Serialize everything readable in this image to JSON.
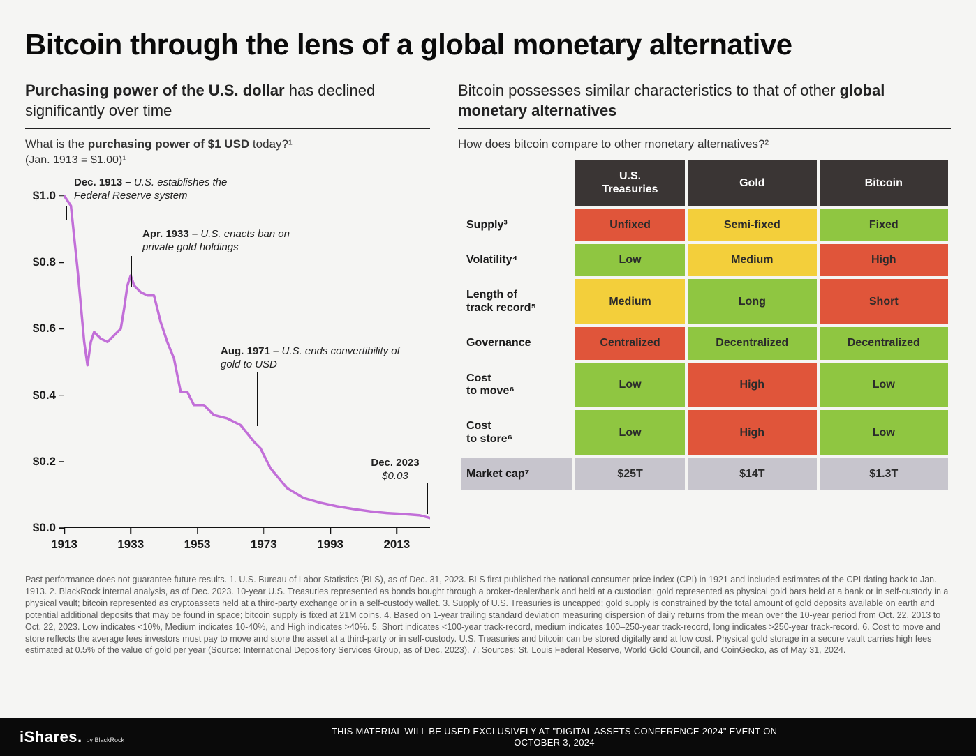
{
  "page": {
    "title": "Bitcoin through the lens of a global monetary alternative",
    "background_color": "#f5f5f3",
    "text_color": "#1a1a1a"
  },
  "left": {
    "heading_prefix_bold": "Purchasing power of the U.S. dollar",
    "heading_rest": " has declined significantly over time",
    "question_prefix": "What is the ",
    "question_bold": "purchasing power of $1 USD",
    "question_suffix": " today?¹",
    "baseline_note": "(Jan. 1913 = $1.00)¹"
  },
  "chart": {
    "type": "line",
    "line_color": "#c26fd8",
    "line_width": 3.5,
    "axis_color": "#111111",
    "label_fontsize": 17,
    "xlim": [
      1913,
      2023
    ],
    "ylim": [
      0.0,
      1.05
    ],
    "y_ticks": [
      {
        "v": 0.0,
        "label": "$0.0"
      },
      {
        "v": 0.2,
        "label": "$0.2"
      },
      {
        "v": 0.4,
        "label": "$0.4"
      },
      {
        "v": 0.6,
        "label": "$0.6"
      },
      {
        "v": 0.8,
        "label": "$0.8"
      },
      {
        "v": 1.0,
        "label": "$1.0"
      }
    ],
    "x_ticks": [
      {
        "v": 1913,
        "label": "1913"
      },
      {
        "v": 1933,
        "label": "1933"
      },
      {
        "v": 1953,
        "label": "1953"
      },
      {
        "v": 1973,
        "label": "1973"
      },
      {
        "v": 1993,
        "label": "1993"
      },
      {
        "v": 2013,
        "label": "2013"
      }
    ],
    "series": [
      {
        "x": 1913,
        "y": 1.0
      },
      {
        "x": 1915,
        "y": 0.97
      },
      {
        "x": 1917,
        "y": 0.78
      },
      {
        "x": 1919,
        "y": 0.56
      },
      {
        "x": 1920,
        "y": 0.49
      },
      {
        "x": 1921,
        "y": 0.56
      },
      {
        "x": 1922,
        "y": 0.59
      },
      {
        "x": 1924,
        "y": 0.57
      },
      {
        "x": 1926,
        "y": 0.56
      },
      {
        "x": 1928,
        "y": 0.58
      },
      {
        "x": 1930,
        "y": 0.6
      },
      {
        "x": 1931,
        "y": 0.66
      },
      {
        "x": 1932,
        "y": 0.73
      },
      {
        "x": 1933,
        "y": 0.76
      },
      {
        "x": 1934,
        "y": 0.73
      },
      {
        "x": 1936,
        "y": 0.71
      },
      {
        "x": 1938,
        "y": 0.7
      },
      {
        "x": 1940,
        "y": 0.7
      },
      {
        "x": 1942,
        "y": 0.62
      },
      {
        "x": 1944,
        "y": 0.56
      },
      {
        "x": 1946,
        "y": 0.51
      },
      {
        "x": 1948,
        "y": 0.41
      },
      {
        "x": 1950,
        "y": 0.41
      },
      {
        "x": 1952,
        "y": 0.37
      },
      {
        "x": 1955,
        "y": 0.37
      },
      {
        "x": 1958,
        "y": 0.34
      },
      {
        "x": 1962,
        "y": 0.33
      },
      {
        "x": 1966,
        "y": 0.31
      },
      {
        "x": 1970,
        "y": 0.26
      },
      {
        "x": 1972,
        "y": 0.24
      },
      {
        "x": 1975,
        "y": 0.18
      },
      {
        "x": 1980,
        "y": 0.12
      },
      {
        "x": 1985,
        "y": 0.09
      },
      {
        "x": 1990,
        "y": 0.076
      },
      {
        "x": 1995,
        "y": 0.065
      },
      {
        "x": 2000,
        "y": 0.057
      },
      {
        "x": 2005,
        "y": 0.05
      },
      {
        "x": 2010,
        "y": 0.045
      },
      {
        "x": 2015,
        "y": 0.042
      },
      {
        "x": 2020,
        "y": 0.038
      },
      {
        "x": 2023,
        "y": 0.03
      }
    ],
    "annotations": [
      {
        "id": "fed",
        "title": "Dec. 1913 – ",
        "text": "U.S. establishes the Federal Reserve system",
        "x": 1913,
        "line_y0": 1.0
      },
      {
        "id": "gold_ban",
        "title": "Apr. 1933 – ",
        "text": "U.S. enacts ban on private gold holdings",
        "x": 1933,
        "line_y0": 0.76
      },
      {
        "id": "end_conv",
        "title": "Aug. 1971 – ",
        "text": "U.S. ends convertibility of gold to USD",
        "x": 1971,
        "line_y0": 0.25
      },
      {
        "id": "now",
        "title": "Dec. 2023",
        "text": "$0.03",
        "x": 2023,
        "line_y0": 0.03
      }
    ]
  },
  "right": {
    "heading_prefix": "Bitcoin possesses similar characteristics to that of other ",
    "heading_bold": "global monetary alternatives",
    "question": "How does bitcoin compare to other monetary alternatives?²"
  },
  "table": {
    "header_bg": "#3a3534",
    "header_fg": "#ffffff",
    "marketcap_bg": "#c7c5cd",
    "colors": {
      "green": "#8fc641",
      "yellow": "#f3cf3b",
      "red": "#e0553a"
    },
    "columns": [
      "U.S. Treasuries",
      "Gold",
      "Bitcoin"
    ],
    "rows": [
      {
        "label": "Supply³",
        "cells": [
          {
            "text": "Unfixed",
            "color": "red"
          },
          {
            "text": "Semi-fixed",
            "color": "yellow"
          },
          {
            "text": "Fixed",
            "color": "green"
          }
        ]
      },
      {
        "label": "Volatility⁴",
        "cells": [
          {
            "text": "Low",
            "color": "green"
          },
          {
            "text": "Medium",
            "color": "yellow"
          },
          {
            "text": "High",
            "color": "red"
          }
        ]
      },
      {
        "label": "Length of track record⁵",
        "cells": [
          {
            "text": "Medium",
            "color": "yellow"
          },
          {
            "text": "Long",
            "color": "green"
          },
          {
            "text": "Short",
            "color": "red"
          }
        ]
      },
      {
        "label": "Governance",
        "cells": [
          {
            "text": "Centralized",
            "color": "red"
          },
          {
            "text": "Decentralized",
            "color": "green"
          },
          {
            "text": "Decentralized",
            "color": "green"
          }
        ]
      },
      {
        "label": "Cost to move⁶",
        "cells": [
          {
            "text": "Low",
            "color": "green"
          },
          {
            "text": "High",
            "color": "red"
          },
          {
            "text": "Low",
            "color": "green"
          }
        ]
      },
      {
        "label": "Cost to store⁶",
        "cells": [
          {
            "text": "Low",
            "color": "green"
          },
          {
            "text": "High",
            "color": "red"
          },
          {
            "text": "Low",
            "color": "green"
          }
        ]
      }
    ],
    "marketcap": {
      "label": "Market cap⁷",
      "cells": [
        "$25T",
        "$14T",
        "$1.3T"
      ]
    }
  },
  "footnotes": "Past performance does not guarantee future results. 1. U.S. Bureau of Labor Statistics (BLS), as of Dec. 31, 2023. BLS first published the national consumer price index (CPI) in 1921 and included estimates of the CPI dating back to Jan. 1913. 2. BlackRock internal analysis, as of Dec. 2023. 10-year U.S. Treasuries represented as bonds bought through a broker-dealer/bank and held at a custodian; gold represented as physical gold bars held at a bank or in self-custody in a physical vault; bitcoin represented as cryptoassets held at a third-party exchange or in a self-custody wallet. 3. Supply of U.S. Treasuries is uncapped; gold supply is constrained by the total amount of gold deposits available on earth and potential additional deposits that may be found in space; bitcoin supply is fixed at 21M coins. 4. Based on 1-year trailing standard deviation measuring dispersion of daily returns from the mean over the 10-year period from Oct. 22, 2013 to Oct. 22, 2023. Low indicates <10%, Medium indicates 10-40%, and High indicates >40%. 5. Short indicates <100-year track-record, medium indicates 100–250-year track-record, long indicates >250-year track-record. 6. Cost to move and store reflects the average fees investors must pay to move and store the asset at a third-party or in self-custody. U.S. Treasuries and bitcoin can be stored digitally and at low cost. Physical gold storage in a secure vault carries high fees estimated at 0.5% of the value of gold per year (Source: International Depository Services Group, as of Dec. 2023). 7. Sources: St. Louis Federal Reserve, World Gold Council, and CoinGecko, as of May 31, 2024.",
  "footer": {
    "brand": "iShares",
    "brand_sub": "by BlackRock",
    "disclaimer_line1": "THIS MATERIAL WILL BE USED EXCLUSIVELY AT \"DIGITAL ASSETS CONFERENCE 2024\" EVENT ON",
    "disclaimer_line2": "OCTOBER 3, 2024"
  }
}
